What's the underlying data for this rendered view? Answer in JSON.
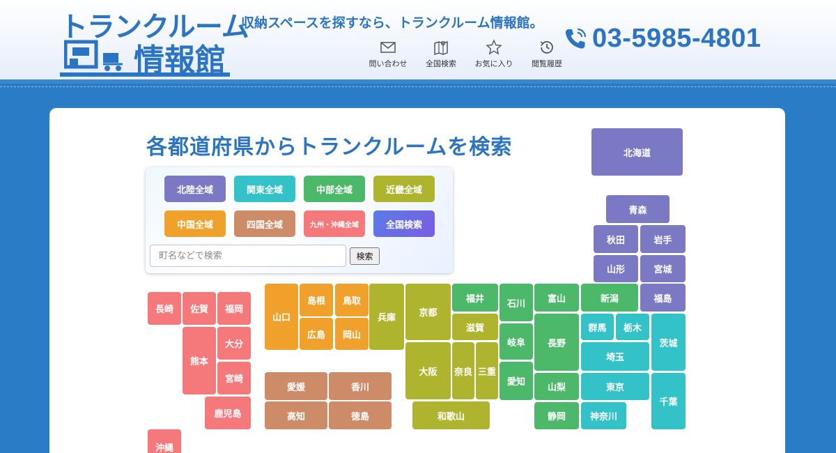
{
  "header": {
    "logo_line1": "トランクルーム",
    "logo_line2": "情報館",
    "tagline": "収納スペースを探すなら、トランクルーム情報館。",
    "phone": "03-5985-4801",
    "nav": [
      {
        "label": "問い合わせ",
        "icon": "mail-icon"
      },
      {
        "label": "全国検索",
        "icon": "map-icon"
      },
      {
        "label": "お気に入り",
        "icon": "star-icon"
      },
      {
        "label": "閲覧履歴",
        "icon": "history-icon"
      }
    ]
  },
  "main": {
    "title": "各都道府県からトランクルームを検索",
    "regions": [
      {
        "label": "北陸全域",
        "color": "#7b79c4"
      },
      {
        "label": "関東全域",
        "color": "#33c2c8"
      },
      {
        "label": "中部全域",
        "color": "#4cb96a"
      },
      {
        "label": "近畿全域",
        "color": "#aeb42e"
      },
      {
        "label": "中国全域",
        "color": "#f0a12b"
      },
      {
        "label": "四国全域",
        "color": "#cd8b67"
      },
      {
        "label": "九州・沖縄全域",
        "color": "#f5787a"
      },
      {
        "label": "全国検索",
        "color": "#6a6ee8"
      }
    ],
    "search": {
      "placeholder": "町名などで検索",
      "button": "検索"
    },
    "prefectures": {
      "hokkaido": "北海道",
      "aomori": "青森",
      "akita": "秋田",
      "iwate": "岩手",
      "yamagata": "山形",
      "miyagi": "宮城",
      "fukushima": "福島",
      "niigata": "新潟",
      "gunma": "群馬",
      "tochigi": "栃木",
      "ibaraki": "茨城",
      "saitama": "埼玉",
      "tokyo": "東京",
      "chiba": "千葉",
      "kanagawa": "神奈川",
      "toyama": "富山",
      "ishikawa": "石川",
      "fukui": "福井",
      "nagano": "長野",
      "gifu": "岐阜",
      "yamanashi": "山梨",
      "aichi": "愛知",
      "shizuoka": "静岡",
      "shiga": "滋賀",
      "kyoto": "京都",
      "osaka": "大阪",
      "nara": "奈良",
      "mie": "三重",
      "hyogo": "兵庫",
      "wakayama": "和歌山",
      "yamaguchi": "山口",
      "shimane": "島根",
      "tottori": "鳥取",
      "hiroshima": "広島",
      "okayama": "岡山",
      "ehime": "愛媛",
      "kagawa": "香川",
      "kochi": "高知",
      "tokushima": "徳島",
      "nagasaki": "長崎",
      "saga": "佐賀",
      "fukuoka": "福岡",
      "oita": "大分",
      "kumamoto": "熊本",
      "miyazaki": "宮崎",
      "kagoshima": "鹿児島",
      "okinawa": "沖縄"
    }
  }
}
